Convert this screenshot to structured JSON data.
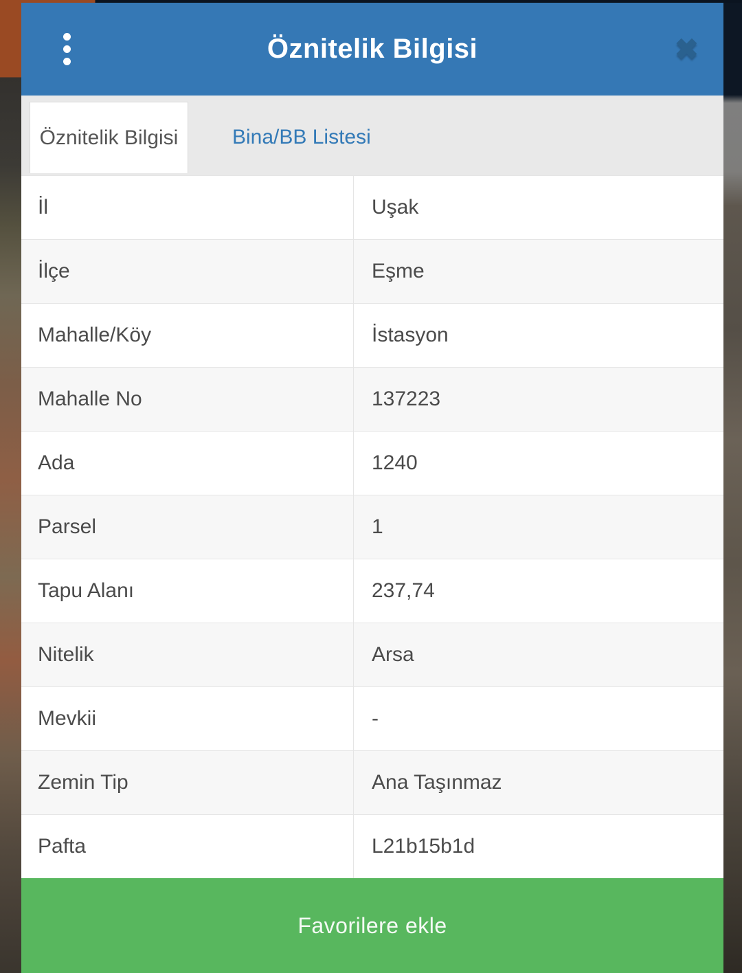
{
  "dialog": {
    "title": "Öznitelik Bilgisi",
    "close_glyph": "✖"
  },
  "tabs": [
    {
      "label": "Öznitelik Bilgisi",
      "active": true
    },
    {
      "label": "Bina/BB Listesi",
      "active": false
    }
  ],
  "attribute_table": {
    "rows": [
      {
        "label": "İl",
        "value": "Uşak"
      },
      {
        "label": "İlçe",
        "value": "Eşme"
      },
      {
        "label": "Mahalle/Köy",
        "value": "İstasyon"
      },
      {
        "label": "Mahalle No",
        "value": "137223"
      },
      {
        "label": "Ada",
        "value": "1240"
      },
      {
        "label": "Parsel",
        "value": "1"
      },
      {
        "label": "Tapu Alanı",
        "value": "237,74"
      },
      {
        "label": "Nitelik",
        "value": "Arsa"
      },
      {
        "label": "Mevkii",
        "value": "-"
      },
      {
        "label": "Zemin Tip",
        "value": "Ana Taşınmaz"
      },
      {
        "label": "Pafta",
        "value": "L21b15b1d"
      }
    ]
  },
  "footer": {
    "favorites_button": "Favorilere ekle"
  },
  "colors": {
    "header_bg": "#3578b5",
    "close_icon": "#2a618f",
    "tab_bar_bg": "#e9e9e9",
    "tab_link": "#337ab7",
    "active_tab_text": "#555555",
    "row_stripe": "#f7f7f7",
    "table_border": "#e5e5e5",
    "table_text": "#4b4b4b",
    "button_bg": "#58b75e",
    "button_text": "#f4faf4"
  }
}
